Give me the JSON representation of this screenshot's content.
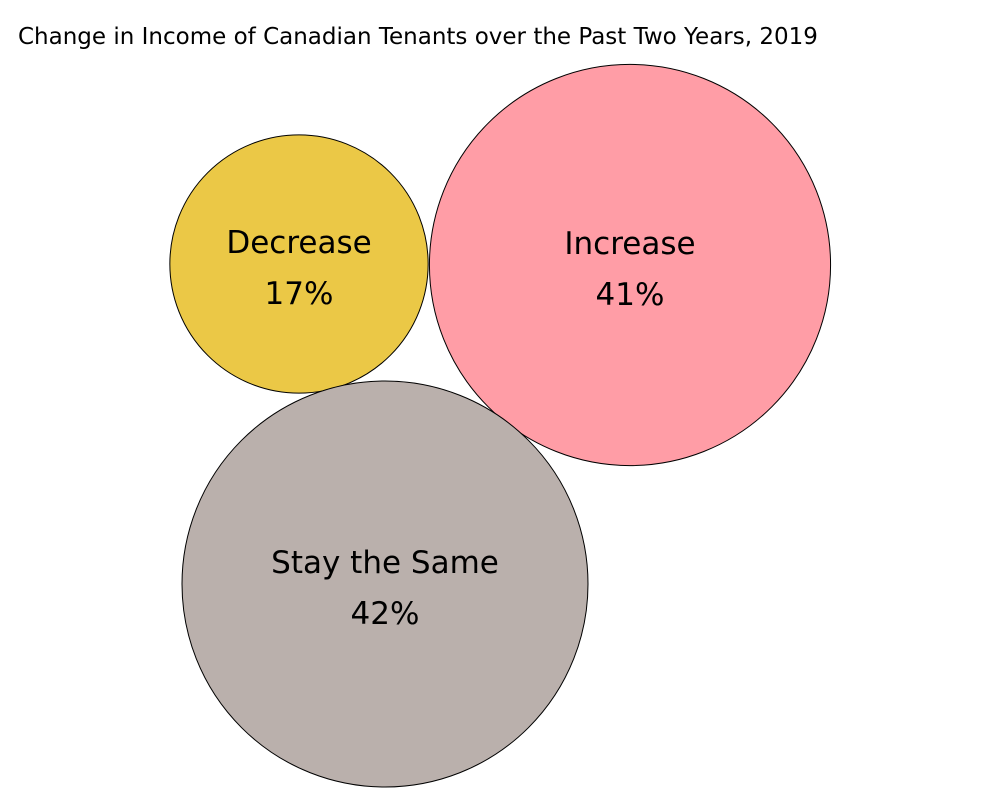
{
  "chart_data": {
    "type": "bubble",
    "title": "Change in Income of Canadian Tenants over the Past Two Years, 2019",
    "categories": [
      "Decrease",
      "Increase",
      "Stay the Same"
    ],
    "values": [
      17,
      41,
      42
    ],
    "value_labels": [
      "17%",
      "41%",
      "42%"
    ],
    "colors": [
      "#EBC846",
      "#FF9DA6",
      "#BAB0AC"
    ],
    "outline_color": "#000000",
    "legend": "none",
    "grid": false
  }
}
